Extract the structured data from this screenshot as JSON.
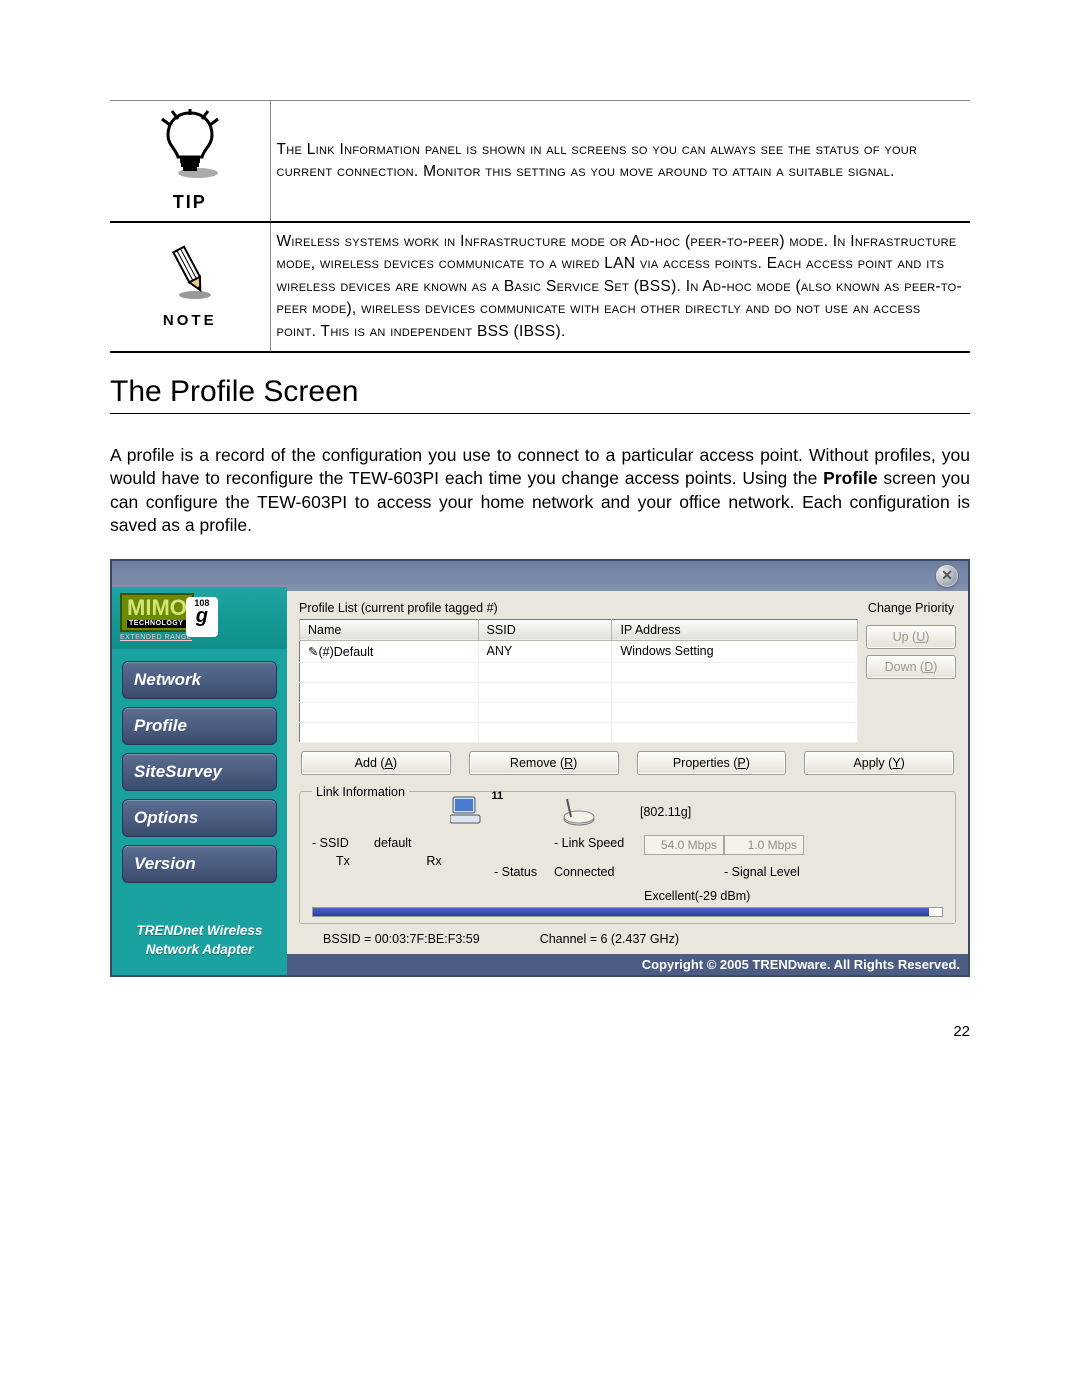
{
  "notes": {
    "tip_label": "TIP",
    "tip_text": "The Link Information panel is shown in all screens so you can always see the status of your current connection. Monitor this setting as you move around to attain a suitable signal.",
    "note_label": "NOTE",
    "note_text": "Wireless systems work in Infrastructure mode or Ad-hoc (peer-to-peer) mode. In Infrastructure mode, wireless devices communicate to a wired LAN via access points. Each access point and its wireless devices are known as a Basic Service Set (BSS). In Ad-hoc mode (also known as peer-to-peer mode), wireless devices communicate with each other directly and do not use an access point. This is an independent BSS (IBSS)."
  },
  "section_title": "The Profile Screen",
  "body_paragraph_1": "A profile is a record of the configuration you use to connect to a particular access point. Without profiles, you would have to reconfigure the TEW-603PI each time you change access points. Using the ",
  "body_paragraph_bold": "Profile",
  "body_paragraph_2": " screen you can configure the TEW-603PI to access your home network and your office network. Each configuration is saved as a profile.",
  "app": {
    "logo": {
      "brand": "MIMO",
      "tech": "TECHNOLOGY",
      "g": "108",
      "ext": "EXTENDED RANGE"
    },
    "nav": [
      "Network",
      "Profile",
      "SiteSurvey",
      "Options",
      "Version"
    ],
    "sidebar_footer_1": "TRENDnet Wireless",
    "sidebar_footer_2": "Network Adapter",
    "profile_list_label": "Profile List (current profile tagged #)",
    "change_priority_label": "Change Priority",
    "columns": [
      "Name",
      "SSID",
      "IP Address"
    ],
    "row": {
      "name": "(#)Default",
      "ssid": "ANY",
      "ip": "Windows Setting"
    },
    "priority_up": "Up (U)",
    "priority_down": "Down (D)",
    "btn_add": "Add (A)",
    "btn_remove": "Remove (R)",
    "btn_properties": "Properties (P)",
    "btn_apply": "Apply (Y)",
    "link_legend": "Link Information",
    "signal_strength": "11",
    "mode": "[802.11g]",
    "ssid_label": "- SSID",
    "ssid_value": "default",
    "status_label": "- Status",
    "status_value": "Connected",
    "linkspeed_label": "- Link Speed",
    "tx_label": "Tx",
    "rx_label": "Rx",
    "tx_value": "54.0 Mbps",
    "rx_value": "1.0 Mbps",
    "signal_label": "- Signal Level",
    "signal_value": "Excellent(-29 dBm)",
    "signal_percent": 98,
    "bssid": "BSSID = 00:03:7F:BE:F3:59",
    "channel": "Channel = 6 (2.437 GHz)",
    "copyright": "Copyright © 2005 TRENDware. All Rights Reserved."
  },
  "page_number": "22",
  "colors": {
    "sidebar_bg": "#19a2a0",
    "nav_btn_top": "#5b6f93",
    "nav_btn_bottom": "#3a4a6d",
    "panel_bg": "#e9e6dd",
    "titlebar": "#7c8ba8",
    "logo_bg": "#6a8a00",
    "signal_bar": "#2a3ea0",
    "copyright_bg": "#4b5d82"
  }
}
